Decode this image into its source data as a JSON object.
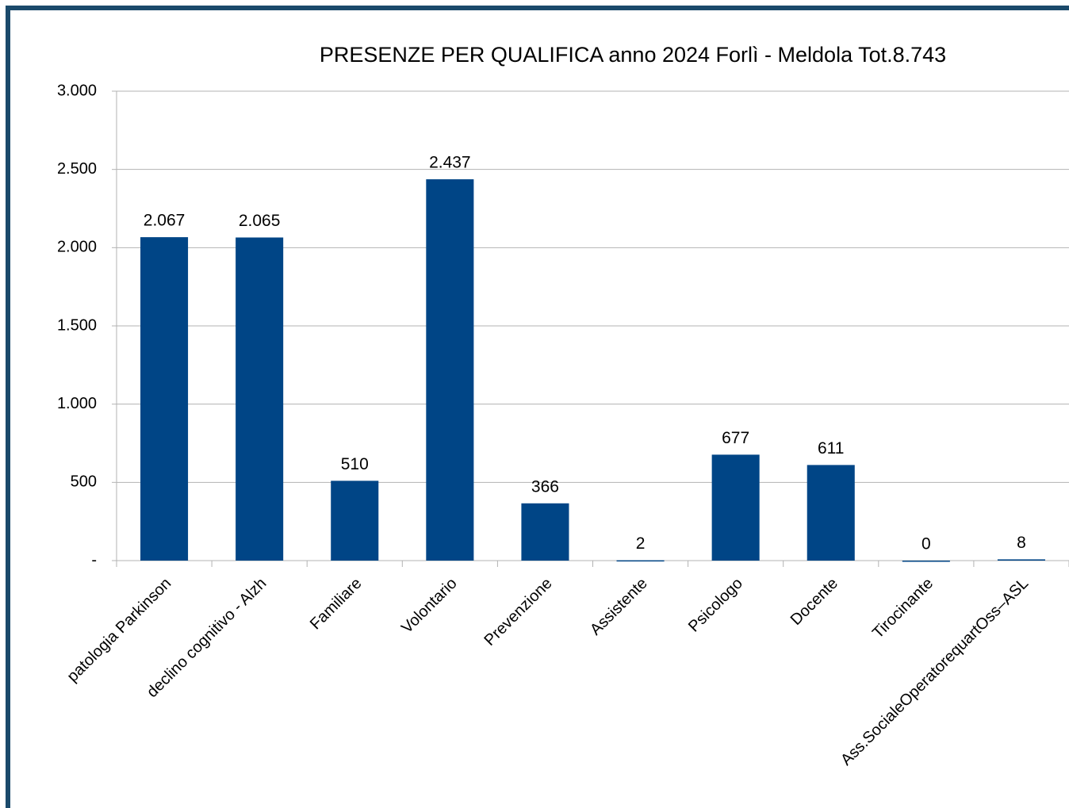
{
  "chart_data": {
    "type": "bar",
    "title": "PRESENZE PER QUALIFICA anno 2024 Forlì - Meldola Tot.8.743",
    "categories": [
      "patologia Parkinson",
      "declino cognitivo - Alzh",
      "Familiare",
      "Volontario",
      "Prevenzione",
      "Assistente",
      "Psicologo",
      "Docente",
      "Tirocinante",
      "Ass.SocialeOperatorequartOss–ASL"
    ],
    "values": [
      2067,
      2065,
      510,
      2437,
      366,
      2,
      677,
      611,
      0,
      8
    ],
    "value_labels": [
      "2.067",
      "2.065",
      "510",
      "2.437",
      "366",
      "2",
      "677",
      "611",
      "0",
      "8"
    ],
    "color": "#004586",
    "ylim": [
      0,
      3000
    ],
    "yticks": [
      {
        "value": 0,
        "label": "-"
      },
      500,
      {
        "value": 1000,
        "label": "1.000"
      },
      {
        "value": 1500,
        "label": "1.500"
      },
      {
        "value": 2000,
        "label": "2.000"
      },
      {
        "value": 2500,
        "label": "2.500"
      },
      {
        "value": 3000,
        "label": "3.000"
      }
    ],
    "grid": true
  }
}
